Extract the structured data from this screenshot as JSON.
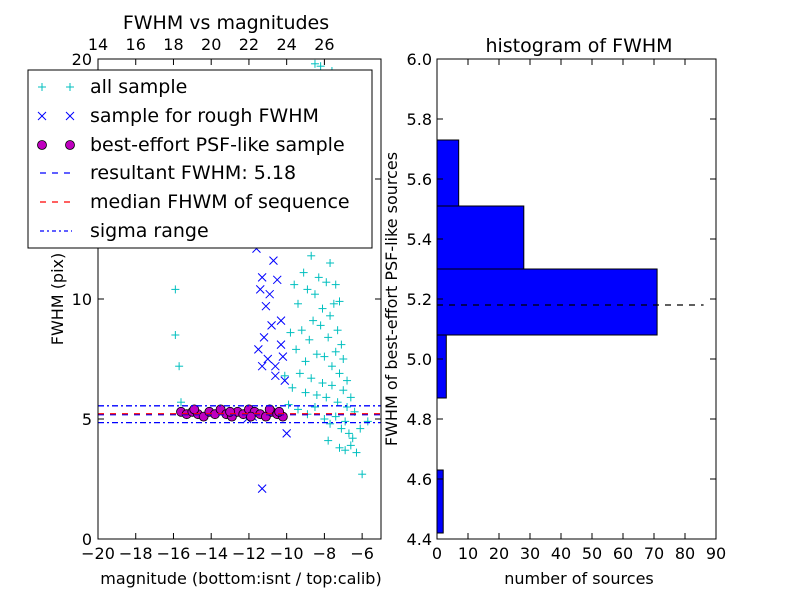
{
  "chart_data": [
    {
      "type": "scatter",
      "title": "FWHM vs magnitudes",
      "xlabel": "magnitude (bottom:isnt / top:calib)",
      "ylabel": "FWHM (pix)",
      "xlim": [
        -20,
        -5
      ],
      "ylim": [
        0,
        20
      ],
      "x_ticks": [
        -20,
        -18,
        -16,
        -14,
        -12,
        -10,
        -8,
        -6
      ],
      "x_tick_labels": [
        "−20",
        "−18",
        "−16",
        "−14",
        "−12",
        "−10",
        "−8",
        "−6"
      ],
      "y_ticks": [
        0,
        5,
        10,
        15,
        20
      ],
      "y_tick_labels": [
        "0",
        "5",
        "10",
        "15",
        "20"
      ],
      "top_axis": {
        "ticks": [
          14,
          16,
          18,
          20,
          22,
          24,
          26
        ],
        "tick_labels": [
          "14",
          "16",
          "18",
          "20",
          "22",
          "24",
          "26"
        ],
        "offset_from_bottom": 34
      },
      "legend": {
        "placement": "upper-left",
        "entries": [
          "all sample",
          "sample for rough FWHM",
          "best-effort PSF-like sample",
          "resultant FWHM: 5.18",
          "median FHWM of sequence",
          "sigma range"
        ]
      },
      "series": [
        {
          "name": "all sample",
          "marker": "plus",
          "color": "#00bfbf",
          "points": [
            [
              -15.9,
              10.4
            ],
            [
              -15.9,
              8.5
            ],
            [
              -15.7,
              7.2
            ],
            [
              -15.6,
              5.7
            ],
            [
              -11.6,
              14.6
            ],
            [
              -10.6,
              14.8
            ],
            [
              -9.6,
              18.5
            ],
            [
              -9.3,
              17.2
            ],
            [
              -8.9,
              16.6
            ],
            [
              -8.5,
              19.8
            ],
            [
              -8.2,
              19.7
            ],
            [
              -7.6,
              19.5
            ],
            [
              -9.7,
              13.4
            ],
            [
              -9.2,
              12.7
            ],
            [
              -8.8,
              14.4
            ],
            [
              -8.6,
              13.1
            ],
            [
              -8.4,
              14.5
            ],
            [
              -8.2,
              13.3
            ],
            [
              -8.0,
              12.4
            ],
            [
              -7.7,
              11.5
            ],
            [
              -7.4,
              10.6
            ],
            [
              -7.2,
              9.9
            ],
            [
              -9.6,
              10.6
            ],
            [
              -9.4,
              9.8
            ],
            [
              -9.1,
              11.1
            ],
            [
              -8.9,
              10.4
            ],
            [
              -8.7,
              11.8
            ],
            [
              -8.5,
              10.2
            ],
            [
              -8.3,
              10.9
            ],
            [
              -8.1,
              9.6
            ],
            [
              -7.9,
              10.7
            ],
            [
              -7.7,
              9.3
            ],
            [
              -7.5,
              9.8
            ],
            [
              -7.3,
              8.7
            ],
            [
              -7.1,
              8.1
            ],
            [
              -9.8,
              8.6
            ],
            [
              -9.5,
              7.9
            ],
            [
              -9.2,
              8.7
            ],
            [
              -9.0,
              7.4
            ],
            [
              -8.8,
              8.3
            ],
            [
              -8.6,
              9.1
            ],
            [
              -8.4,
              7.7
            ],
            [
              -8.2,
              8.9
            ],
            [
              -8.0,
              7.6
            ],
            [
              -7.8,
              8.4
            ],
            [
              -7.6,
              7.2
            ],
            [
              -7.4,
              7.8
            ],
            [
              -7.2,
              6.9
            ],
            [
              -7.0,
              7.5
            ],
            [
              -6.8,
              6.6
            ],
            [
              -10.1,
              6.8
            ],
            [
              -9.7,
              6.3
            ],
            [
              -9.3,
              6.9
            ],
            [
              -9.0,
              6.1
            ],
            [
              -8.7,
              6.7
            ],
            [
              -8.4,
              6.0
            ],
            [
              -8.1,
              6.5
            ],
            [
              -7.9,
              5.9
            ],
            [
              -7.6,
              6.4
            ],
            [
              -7.3,
              5.7
            ],
            [
              -7.0,
              6.2
            ],
            [
              -6.8,
              5.5
            ],
            [
              -6.6,
              5.9
            ],
            [
              -9.9,
              5.6
            ],
            [
              -9.4,
              5.4
            ],
            [
              -8.9,
              5.2
            ],
            [
              -8.5,
              5.5
            ],
            [
              -8.0,
              5.0
            ],
            [
              -7.7,
              4.8
            ],
            [
              -7.4,
              5.1
            ],
            [
              -7.1,
              4.6
            ],
            [
              -6.9,
              4.9
            ],
            [
              -6.7,
              4.4
            ],
            [
              -6.5,
              4.2
            ],
            [
              -7.8,
              4.1
            ],
            [
              -7.2,
              3.8
            ],
            [
              -6.9,
              3.7
            ],
            [
              -6.6,
              3.9
            ],
            [
              -6.3,
              3.6
            ],
            [
              -6.1,
              4.6
            ],
            [
              -6.0,
              2.7
            ],
            [
              -5.7,
              4.9
            ],
            [
              -6.4,
              5.3
            ]
          ]
        },
        {
          "name": "sample for rough FWHM",
          "marker": "x",
          "color": "#0000ff",
          "points": [
            [
              -11.3,
              2.1
            ],
            [
              -11.6,
              12.1
            ],
            [
              -11.0,
              12.5
            ],
            [
              -10.8,
              13.8
            ],
            [
              -10.4,
              12.9
            ],
            [
              -10.7,
              11.6
            ],
            [
              -11.3,
              10.9
            ],
            [
              -10.9,
              10.2
            ],
            [
              -11.4,
              10.4
            ],
            [
              -11.1,
              9.7
            ],
            [
              -10.5,
              10.8
            ],
            [
              -10.3,
              9.1
            ],
            [
              -11.2,
              8.4
            ],
            [
              -10.8,
              8.9
            ],
            [
              -10.3,
              8.1
            ],
            [
              -11.5,
              7.9
            ],
            [
              -11.0,
              7.5
            ],
            [
              -10.6,
              7.2
            ],
            [
              -10.2,
              7.6
            ],
            [
              -11.3,
              7.2
            ],
            [
              -10.6,
              6.8
            ],
            [
              -10.1,
              6.6
            ],
            [
              -11.8,
              5.1
            ],
            [
              -10.0,
              4.4
            ],
            [
              -12.1,
              5.0
            ]
          ]
        },
        {
          "name": "best-effort PSF-like sample",
          "marker": "circle",
          "color": "#bf00bf",
          "points": [
            [
              -15.6,
              5.3
            ],
            [
              -15.3,
              5.2
            ],
            [
              -15.0,
              5.3
            ],
            [
              -14.7,
              5.2
            ],
            [
              -14.4,
              5.1
            ],
            [
              -14.1,
              5.3
            ],
            [
              -13.8,
              5.2
            ],
            [
              -13.5,
              5.4
            ],
            [
              -13.2,
              5.2
            ],
            [
              -12.9,
              5.1
            ],
            [
              -12.6,
              5.3
            ],
            [
              -12.3,
              5.2
            ],
            [
              -12.0,
              5.4
            ],
            [
              -11.7,
              5.3
            ],
            [
              -11.4,
              5.2
            ],
            [
              -11.1,
              5.1
            ],
            [
              -10.8,
              5.3
            ],
            [
              -10.5,
              5.2
            ],
            [
              -10.2,
              5.1
            ],
            [
              -14.9,
              5.4
            ],
            [
              -13.0,
              5.3
            ],
            [
              -11.9,
              5.1
            ],
            [
              -10.9,
              5.4
            ],
            [
              -10.4,
              5.3
            ]
          ]
        },
        {
          "name": "resultant FWHM: 5.18",
          "kind": "hline",
          "y": 5.18,
          "style": "dashed",
          "color": "#0000ff"
        },
        {
          "name": "median FHWM of sequence",
          "kind": "hline",
          "y": 5.22,
          "style": "dashed",
          "color": "#ff0000"
        },
        {
          "name": "sigma range",
          "kind": "hline",
          "y_values": [
            4.85,
            5.55
          ],
          "style": "dashdot",
          "color": "#0000ff"
        }
      ]
    },
    {
      "type": "bar",
      "orientation": "horizontal",
      "title": "histogram of FWHM",
      "xlabel": "number of sources",
      "ylabel": "FWHM of best-effort PSF-like sources",
      "xlim": [
        0,
        90
      ],
      "ylim": [
        4.4,
        6.0
      ],
      "x_ticks": [
        0,
        10,
        20,
        30,
        40,
        50,
        60,
        70,
        80,
        90
      ],
      "x_tick_labels": [
        "0",
        "10",
        "20",
        "30",
        "40",
        "50",
        "60",
        "70",
        "80",
        "90"
      ],
      "y_ticks": [
        4.4,
        4.6,
        4.8,
        5.0,
        5.2,
        5.4,
        5.6,
        5.8,
        6.0
      ],
      "y_tick_labels": [
        "4.4",
        "4.6",
        "4.8",
        "5.0",
        "5.2",
        "5.4",
        "5.6",
        "5.8",
        "6.0"
      ],
      "bins": [
        {
          "lo": 4.42,
          "hi": 4.63,
          "count": 2
        },
        {
          "lo": 4.63,
          "hi": 4.87,
          "count": 0
        },
        {
          "lo": 4.87,
          "hi": 5.08,
          "count": 3
        },
        {
          "lo": 5.08,
          "hi": 5.3,
          "count": 71
        },
        {
          "lo": 5.3,
          "hi": 5.51,
          "count": 28
        },
        {
          "lo": 5.51,
          "hi": 5.73,
          "count": 7
        }
      ],
      "bar_color": "#0000ff",
      "median_line": {
        "y": 5.18,
        "x_to": 86,
        "style": "dashed",
        "color": "#000000"
      }
    }
  ]
}
